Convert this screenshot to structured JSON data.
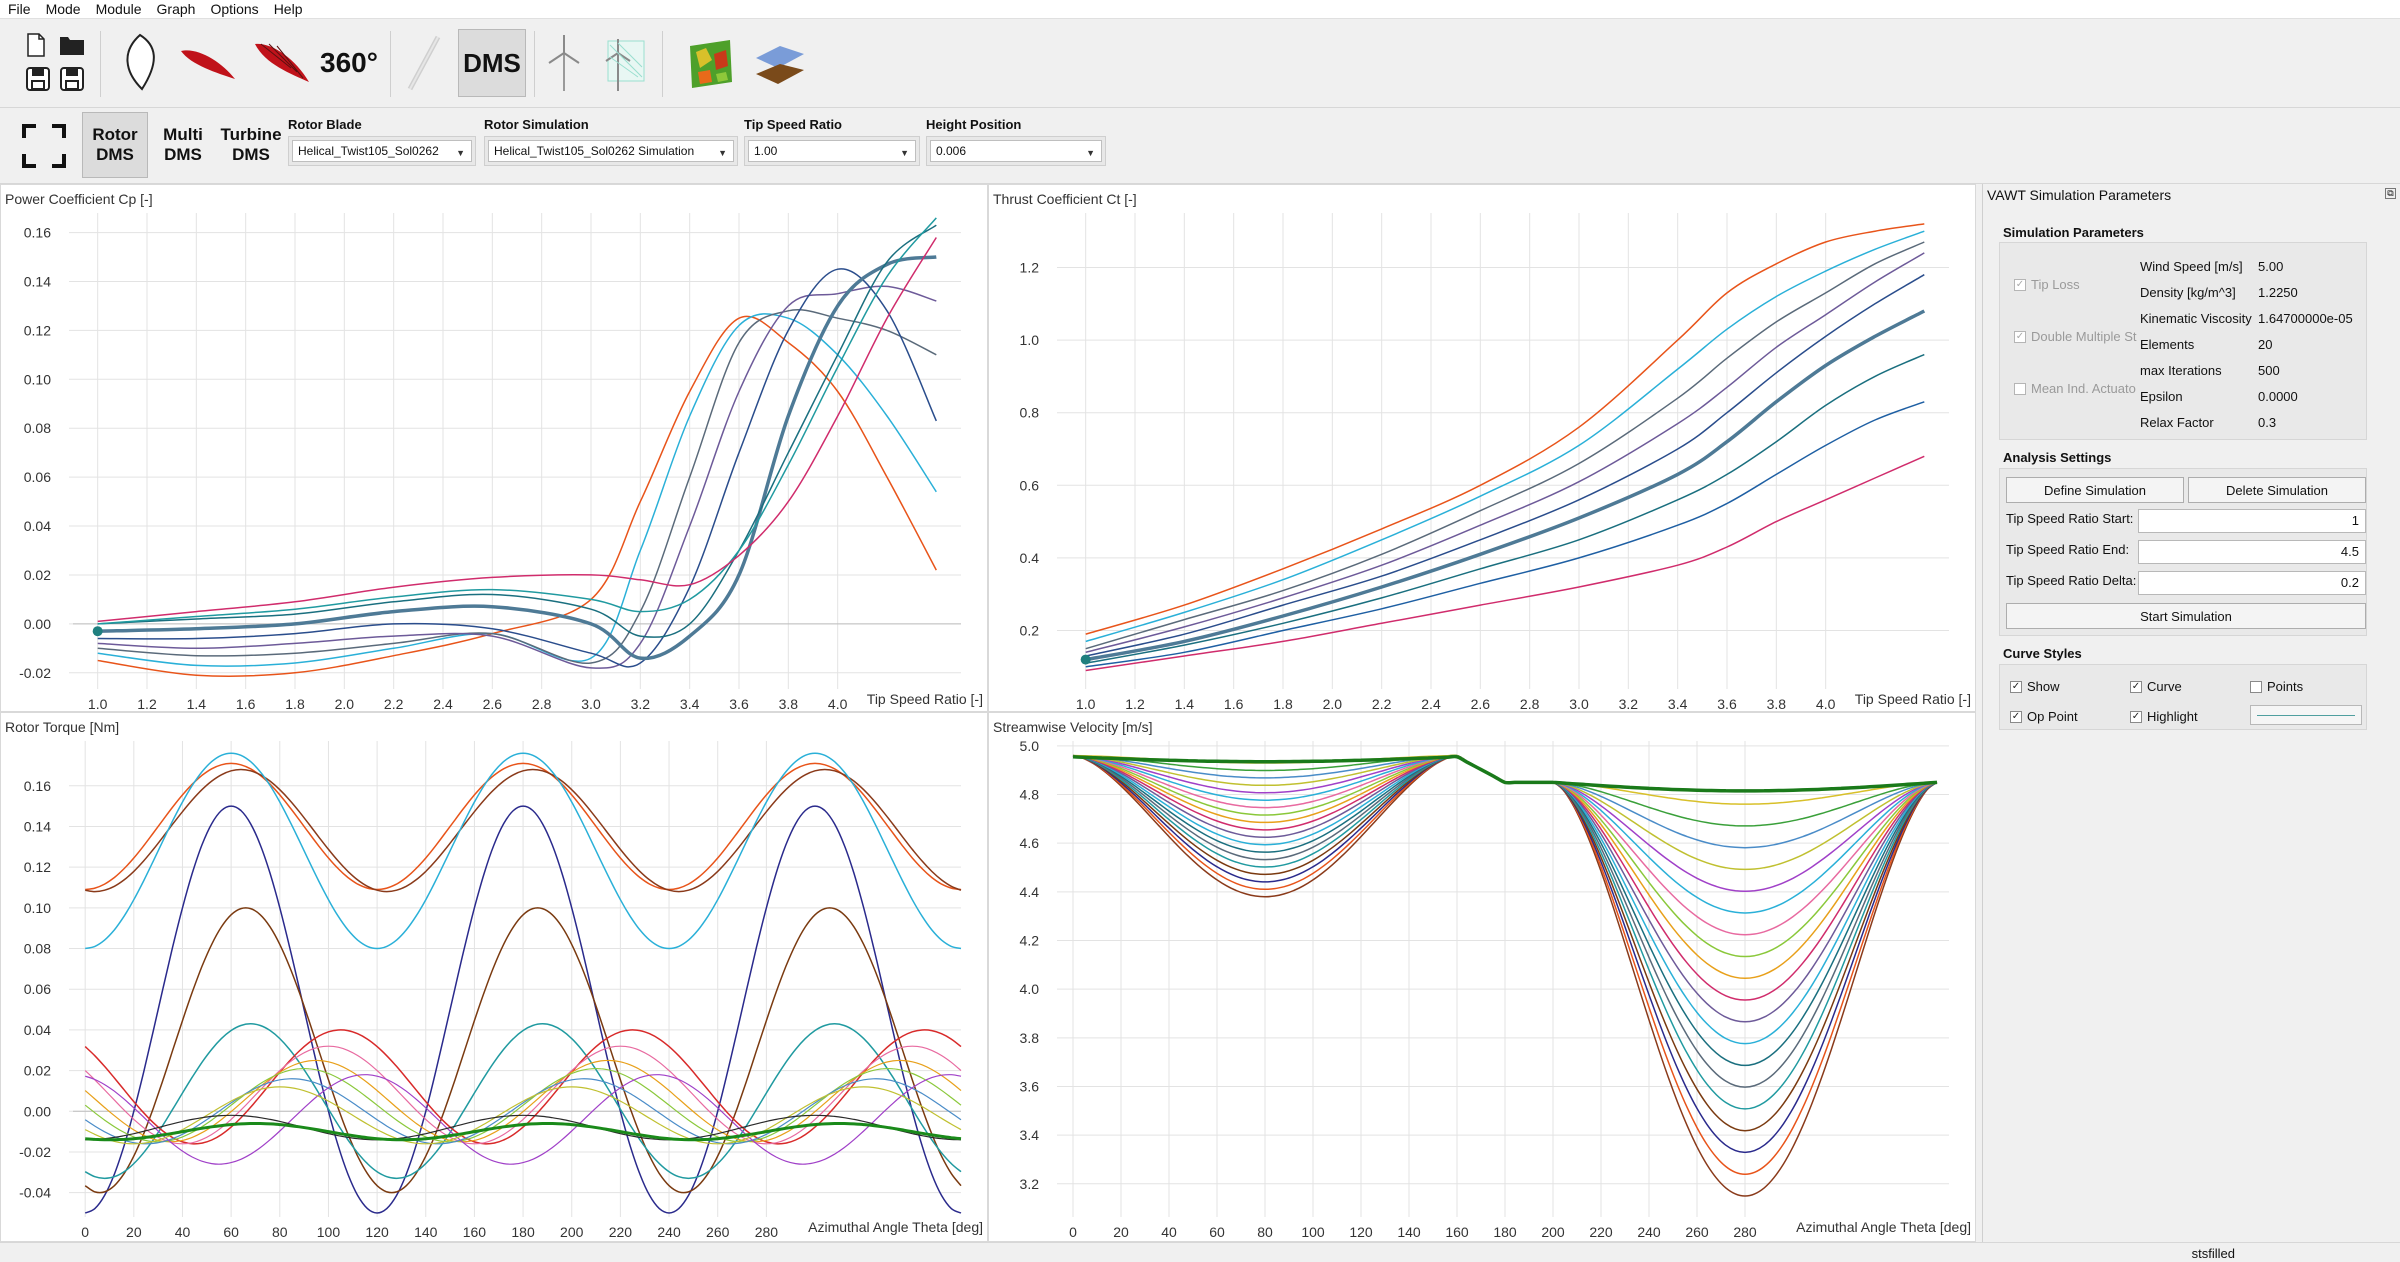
{
  "menu": [
    "File",
    "Mode",
    "Module",
    "Graph",
    "Options",
    "Help"
  ],
  "toolbar": {
    "label_360": "360°",
    "label_dms": "DMS"
  },
  "modes": {
    "rotor_dms": "Rotor DMS",
    "multi_dms": "Multi DMS",
    "turbine_dms": "Turbine DMS"
  },
  "selectors": {
    "rotor_blade": {
      "label": "Rotor Blade",
      "value": "Helical_Twist105_Sol0262"
    },
    "rotor_simulation": {
      "label": "Rotor Simulation",
      "value": "Helical_Twist105_Sol0262 Simulation"
    },
    "tip_speed_ratio": {
      "label": "Tip Speed Ratio",
      "value": "1.00"
    },
    "height_position": {
      "label": "Height Position",
      "value": "0.006"
    }
  },
  "plots": {
    "cp": {
      "title": "Power Coefficient Cp [-]",
      "xlabel": "Tip Speed Ratio [-]"
    },
    "ct": {
      "title": "Thrust Coefficient Ct [-]",
      "xlabel": "Tip Speed Ratio [-]"
    },
    "torque": {
      "title": "Rotor Torque [Nm]",
      "xlabel": "Azimuthal Angle Theta [deg]"
    },
    "velocity": {
      "title": "Streamwise Velocity [m/s]",
      "xlabel": "Azimuthal Angle Theta [deg]"
    }
  },
  "chart_data": [
    {
      "type": "line",
      "id": "cp",
      "title": "Power Coefficient Cp [-]",
      "xlabel": "Tip Speed Ratio [-]",
      "ylabel": "",
      "xlim": [
        0.9,
        4.5
      ],
      "ylim": [
        -0.025,
        0.168
      ],
      "xticks": [
        1.0,
        1.2,
        1.4,
        1.6,
        1.8,
        2.0,
        2.2,
        2.4,
        2.6,
        2.8,
        3.0,
        3.2,
        3.4,
        3.6,
        3.8,
        4.0
      ],
      "yticks": [
        -0.02,
        0.0,
        0.02,
        0.04,
        0.06,
        0.08,
        0.1,
        0.12,
        0.14,
        0.16
      ],
      "x": [
        1.0,
        1.4,
        1.8,
        2.2,
        2.6,
        3.0,
        3.2,
        3.4,
        3.6,
        3.8,
        4.0,
        4.2,
        4.4
      ],
      "series": [
        {
          "color": "#e8541a",
          "width": 1.5,
          "values": [
            -0.015,
            -0.021,
            -0.02,
            -0.013,
            -0.004,
            0.01,
            0.05,
            0.095,
            0.125,
            0.115,
            0.095,
            0.06,
            0.022
          ]
        },
        {
          "color": "#2ab0d8",
          "width": 1.5,
          "values": [
            -0.012,
            -0.017,
            -0.016,
            -0.01,
            -0.004,
            -0.014,
            0.03,
            0.085,
            0.122,
            0.125,
            0.11,
            0.085,
            0.054
          ]
        },
        {
          "color": "#5a6a7a",
          "width": 1.5,
          "values": [
            -0.01,
            -0.013,
            -0.012,
            -0.008,
            -0.004,
            -0.016,
            0.005,
            0.06,
            0.115,
            0.128,
            0.125,
            0.12,
            0.11
          ]
        },
        {
          "color": "#6d5a99",
          "width": 1.5,
          "values": [
            -0.008,
            -0.01,
            -0.008,
            -0.005,
            -0.005,
            -0.018,
            -0.008,
            0.04,
            0.095,
            0.13,
            0.135,
            0.138,
            0.132
          ]
        },
        {
          "color": "#2a4d8c",
          "width": 1.5,
          "values": [
            -0.006,
            -0.006,
            -0.004,
            0.0,
            -0.002,
            -0.012,
            -0.016,
            0.015,
            0.07,
            0.12,
            0.145,
            0.128,
            0.083
          ]
        },
        {
          "color": "#4e7a96",
          "width": 3.5,
          "values": [
            -0.003,
            -0.002,
            0.0,
            0.005,
            0.007,
            0.0,
            -0.014,
            -0.005,
            0.02,
            0.085,
            0.13,
            0.147,
            0.15
          ]
        },
        {
          "color": "#1a6f7f",
          "width": 1.5,
          "values": [
            0.0,
            0.002,
            0.004,
            0.009,
            0.012,
            0.006,
            -0.005,
            0.0,
            0.03,
            0.07,
            0.11,
            0.148,
            0.163
          ]
        },
        {
          "color": "#209aa0",
          "width": 1.5,
          "values": [
            0.0,
            0.003,
            0.006,
            0.011,
            0.014,
            0.01,
            0.005,
            0.01,
            0.03,
            0.065,
            0.105,
            0.142,
            0.166
          ]
        },
        {
          "color": "#d02c6c",
          "width": 1.5,
          "values": [
            0.001,
            0.005,
            0.009,
            0.015,
            0.019,
            0.02,
            0.018,
            0.016,
            0.028,
            0.05,
            0.085,
            0.125,
            0.158
          ]
        }
      ],
      "op_point": {
        "x": 1.0,
        "y": -0.003
      }
    },
    {
      "type": "line",
      "id": "ct",
      "title": "Thrust Coefficient Ct [-]",
      "xlabel": "Tip Speed Ratio [-]",
      "ylabel": "",
      "xlim": [
        0.9,
        4.5
      ],
      "ylim": [
        0.05,
        1.35
      ],
      "xticks": [
        1.0,
        1.2,
        1.4,
        1.6,
        1.8,
        2.0,
        2.2,
        2.4,
        2.6,
        2.8,
        3.0,
        3.2,
        3.4,
        3.6,
        3.8,
        4.0
      ],
      "yticks": [
        0.2,
        0.4,
        0.6,
        0.8,
        1.0,
        1.2
      ],
      "x": [
        1.0,
        1.4,
        1.8,
        2.2,
        2.6,
        3.0,
        3.4,
        3.6,
        3.8,
        4.0,
        4.2,
        4.4
      ],
      "series": [
        {
          "color": "#e8541a",
          "width": 1.5,
          "values": [
            0.19,
            0.27,
            0.37,
            0.48,
            0.6,
            0.76,
            1.0,
            1.13,
            1.21,
            1.27,
            1.3,
            1.32
          ]
        },
        {
          "color": "#2ab0d8",
          "width": 1.5,
          "values": [
            0.17,
            0.25,
            0.34,
            0.45,
            0.57,
            0.71,
            0.92,
            1.03,
            1.12,
            1.19,
            1.25,
            1.3
          ]
        },
        {
          "color": "#5a6a7a",
          "width": 1.5,
          "values": [
            0.15,
            0.23,
            0.31,
            0.41,
            0.53,
            0.66,
            0.84,
            0.95,
            1.05,
            1.13,
            1.21,
            1.27
          ]
        },
        {
          "color": "#6d5a99",
          "width": 1.5,
          "values": [
            0.14,
            0.21,
            0.29,
            0.38,
            0.49,
            0.61,
            0.77,
            0.87,
            0.98,
            1.07,
            1.16,
            1.24
          ]
        },
        {
          "color": "#2a4d8c",
          "width": 1.5,
          "values": [
            0.13,
            0.19,
            0.27,
            0.35,
            0.45,
            0.56,
            0.7,
            0.8,
            0.91,
            1.01,
            1.1,
            1.18
          ]
        },
        {
          "color": "#4e7a96",
          "width": 3.5,
          "values": [
            0.12,
            0.17,
            0.24,
            0.32,
            0.41,
            0.51,
            0.63,
            0.72,
            0.83,
            0.93,
            1.01,
            1.08
          ]
        },
        {
          "color": "#1a6f7f",
          "width": 1.5,
          "values": [
            0.11,
            0.16,
            0.22,
            0.29,
            0.37,
            0.45,
            0.56,
            0.63,
            0.72,
            0.82,
            0.9,
            0.96
          ]
        },
        {
          "color": "#1e5fa3",
          "width": 1.5,
          "values": [
            0.1,
            0.14,
            0.2,
            0.26,
            0.33,
            0.4,
            0.49,
            0.55,
            0.63,
            0.71,
            0.78,
            0.83
          ]
        },
        {
          "color": "#d02c6c",
          "width": 1.5,
          "values": [
            0.09,
            0.13,
            0.17,
            0.22,
            0.27,
            0.32,
            0.38,
            0.43,
            0.5,
            0.56,
            0.62,
            0.68
          ]
        }
      ],
      "op_point": {
        "x": 1.0,
        "y": 0.12
      }
    },
    {
      "type": "line",
      "id": "torque",
      "title": "Rotor Torque [Nm]",
      "xlabel": "Azimuthal Angle Theta [deg]",
      "ylabel": "",
      "xlim": [
        -5,
        360
      ],
      "ylim": [
        -0.05,
        0.182
      ],
      "xticks": [
        0,
        20,
        40,
        60,
        80,
        100,
        120,
        140,
        160,
        180,
        200,
        220,
        240,
        260,
        280
      ],
      "yticks": [
        -0.04,
        -0.02,
        0.0,
        0.02,
        0.04,
        0.06,
        0.08,
        0.1,
        0.12,
        0.14,
        0.16
      ]
    },
    {
      "type": "line",
      "id": "velocity",
      "title": "Streamwise Velocity [m/s]",
      "xlabel": "Azimuthal Angle Theta [deg]",
      "ylabel": "",
      "xlim": [
        -5,
        365
      ],
      "ylim": [
        3.08,
        5.02
      ],
      "xticks": [
        0,
        20,
        40,
        60,
        80,
        100,
        120,
        140,
        160,
        180,
        200,
        220,
        240,
        260,
        280
      ],
      "yticks": [
        3.2,
        3.4,
        3.6,
        3.8,
        4.0,
        4.2,
        4.4,
        4.6,
        4.8,
        5.0
      ]
    }
  ],
  "sidepanel": {
    "title": "VAWT Simulation Parameters",
    "sim_params": {
      "title": "Simulation Parameters",
      "tip_loss": "Tip Loss",
      "double_multiple": "Double Multiple St",
      "mean_ind": "Mean Ind. Actuato",
      "rows": [
        {
          "label": "Wind Speed [m/s]",
          "value": "5.00"
        },
        {
          "label": "Density [kg/m^3]",
          "value": "1.2250"
        },
        {
          "label": "Kinematic Viscosity [m",
          "value": "1.64700000e-05"
        },
        {
          "label": "Elements",
          "value": "20"
        },
        {
          "label": "max Iterations",
          "value": "500"
        },
        {
          "label": "Epsilon",
          "value": "0.0000"
        },
        {
          "label": "Relax Factor",
          "value": "0.3"
        }
      ]
    },
    "analysis": {
      "title": "Analysis Settings",
      "define": "Define Simulation",
      "delete": "Delete Simulation",
      "tsr_start_label": "Tip Speed Ratio Start:",
      "tsr_start": "1",
      "tsr_end_label": "Tip Speed Ratio End:",
      "tsr_end": "4.5",
      "tsr_delta_label": "Tip Speed Ratio Delta:",
      "tsr_delta": "0.2",
      "start": "Start Simulation"
    },
    "curve_styles": {
      "title": "Curve Styles",
      "show": "Show",
      "curve": "Curve",
      "points": "Points",
      "op_point": "Op Point",
      "highlight": "Highlight",
      "line_color": "#4f9f9f"
    }
  },
  "status": "stsfilled"
}
